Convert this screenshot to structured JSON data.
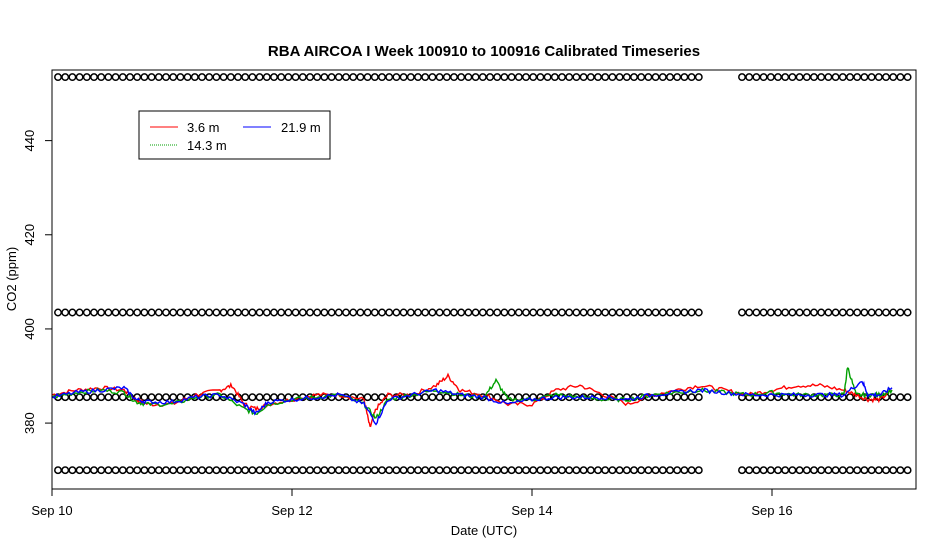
{
  "chart_data": {
    "type": "line",
    "title": "RBA AIRCOA I  Week 100910 to 100916  Calibrated Timeseries",
    "xlabel": "Date (UTC)",
    "ylabel": "CO2 (ppm)",
    "xlim": [
      10.0,
      17.2
    ],
    "ylim": [
      366,
      455
    ],
    "xticks": [
      10,
      12,
      14,
      16
    ],
    "xtick_labels": [
      "Sep 10",
      "Sep 12",
      "Sep 14",
      "Sep 16"
    ],
    "yticks": [
      380,
      400,
      420,
      440
    ],
    "ytick_labels": [
      "380",
      "400",
      "420",
      "440"
    ],
    "grid": false,
    "legend_position": "top-left",
    "series": [
      {
        "name": "3.6 m",
        "color": "#ff0000",
        "x": [
          10.0,
          10.2,
          10.4,
          10.6,
          10.7,
          10.8,
          11.0,
          11.2,
          11.4,
          11.5,
          11.6,
          11.7,
          11.8,
          12.0,
          12.2,
          12.4,
          12.6,
          12.65,
          12.7,
          12.8,
          13.0,
          13.2,
          13.3,
          13.4,
          13.6,
          13.8,
          14.0,
          14.2,
          14.4,
          14.6,
          14.8,
          15.0,
          15.2,
          15.4,
          15.6,
          15.8,
          16.0,
          16.2,
          16.4,
          16.6,
          16.7,
          16.8,
          16.9,
          17.0
        ],
        "y": [
          386,
          387,
          387.5,
          387,
          385,
          384,
          384,
          386,
          387,
          388,
          384,
          383,
          384,
          385,
          386,
          386,
          385,
          379,
          383,
          386,
          386,
          388,
          390,
          387,
          386,
          384,
          384,
          387,
          388,
          386,
          384,
          386,
          387,
          388,
          387,
          386,
          387,
          388,
          388,
          387,
          386,
          385,
          385,
          387
        ]
      },
      {
        "name": "14.3 m",
        "color": "#00a000",
        "x": [
          10.0,
          10.2,
          10.4,
          10.6,
          10.7,
          10.8,
          11.0,
          11.2,
          11.4,
          11.6,
          11.7,
          11.8,
          12.0,
          12.2,
          12.4,
          12.6,
          12.7,
          12.8,
          13.0,
          13.2,
          13.4,
          13.6,
          13.7,
          13.8,
          14.0,
          14.2,
          14.4,
          14.6,
          14.8,
          15.0,
          15.2,
          15.4,
          15.6,
          15.8,
          16.0,
          16.2,
          16.4,
          16.6,
          16.63,
          16.7,
          16.8,
          16.9,
          17.0
        ],
        "y": [
          385.5,
          386.5,
          387,
          386.5,
          384.5,
          384,
          384,
          385.5,
          386,
          383,
          382,
          384,
          385,
          385.5,
          386,
          384,
          381,
          385,
          386,
          387,
          386,
          385.5,
          389,
          385,
          385,
          386,
          385.5,
          385,
          385,
          386,
          386.5,
          387,
          386.5,
          386,
          386.5,
          386,
          386,
          386,
          392,
          386,
          386,
          386,
          387
        ]
      },
      {
        "name": "21.9 m",
        "color": "#0000ff",
        "x": [
          10.0,
          10.2,
          10.4,
          10.6,
          10.7,
          10.8,
          11.0,
          11.2,
          11.4,
          11.6,
          11.7,
          11.8,
          12.0,
          12.2,
          12.4,
          12.6,
          12.7,
          12.8,
          13.0,
          13.2,
          13.4,
          13.6,
          13.8,
          14.0,
          14.2,
          14.4,
          14.6,
          14.8,
          15.0,
          15.2,
          15.4,
          15.6,
          15.8,
          16.0,
          16.2,
          16.4,
          16.6,
          16.75,
          16.8,
          16.9,
          17.0
        ],
        "y": [
          385.5,
          386.5,
          387,
          387.5,
          385,
          384.5,
          384.5,
          385.5,
          386,
          384,
          382,
          384.5,
          385,
          385.5,
          386,
          384,
          380,
          385,
          386,
          387,
          386,
          385.5,
          384,
          385,
          385.5,
          385.5,
          385.5,
          385,
          386,
          386.5,
          387,
          386.5,
          386,
          386,
          386,
          386,
          386,
          389,
          386,
          386,
          387.5
        ]
      }
    ],
    "calibration_points": {
      "marker": "circle",
      "levels": [
        453.5,
        403.5,
        385.5,
        370
      ],
      "gaps": [
        [
          15.45,
          15.7
        ]
      ],
      "x_start": 10.05,
      "x_end": 17.15,
      "x_step": 0.06
    }
  }
}
